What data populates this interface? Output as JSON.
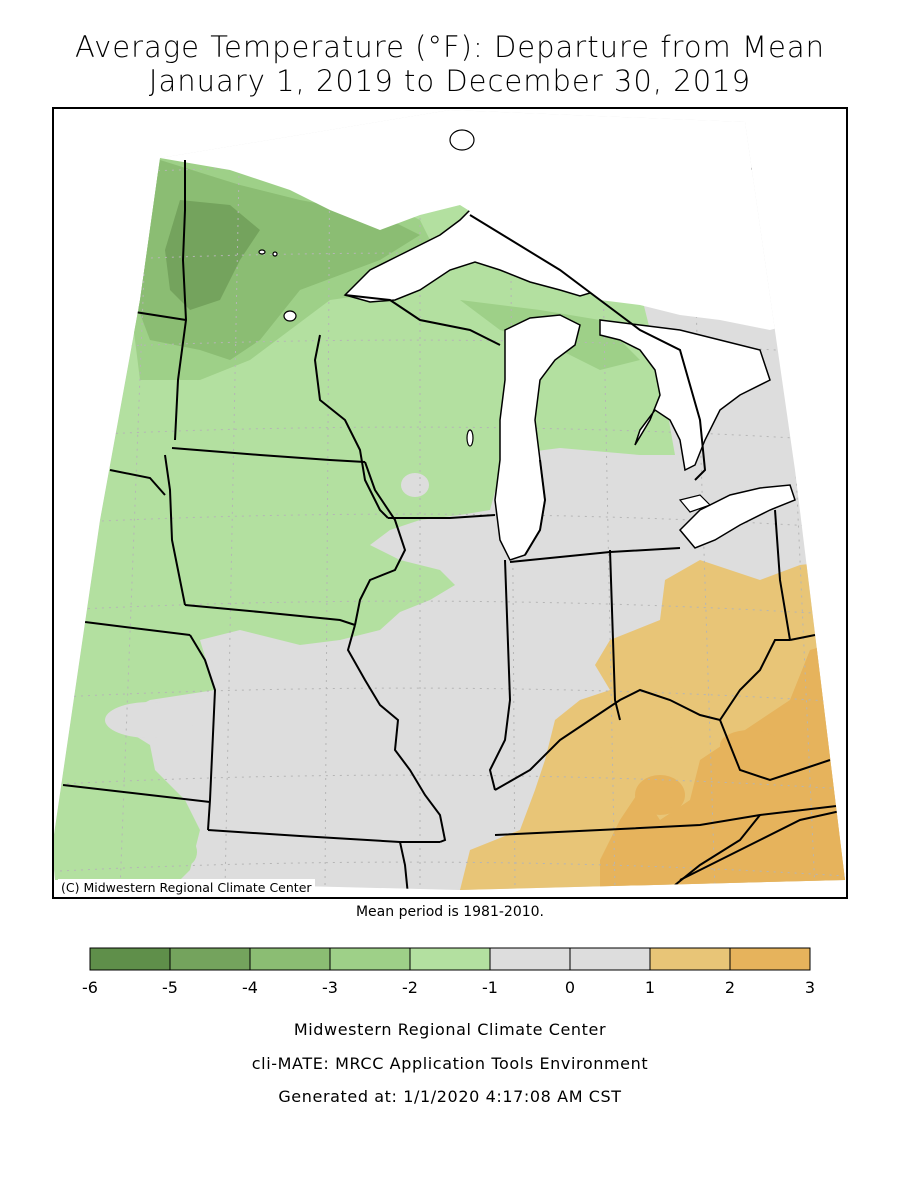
{
  "title_line1": "Average Temperature (°F): Departure from Mean",
  "title_line2": "January 1, 2019 to December 30, 2019",
  "map_credit": "(C) Midwestern Regional Climate Center",
  "mean_period_note": "Mean period is 1981-2010.",
  "legend": {
    "bins": [
      {
        "from": -6,
        "to": -5,
        "color": "#5f8f4a"
      },
      {
        "from": -5,
        "to": -4,
        "color": "#74a35d"
      },
      {
        "from": -4,
        "to": -3,
        "color": "#8bbd73"
      },
      {
        "from": -3,
        "to": -2,
        "color": "#9ed088"
      },
      {
        "from": -2,
        "to": -1,
        "color": "#b3e0a0"
      },
      {
        "from": -1,
        "to": 0,
        "color": "#dddddd"
      },
      {
        "from": 0,
        "to": 1,
        "color": "#dddddd"
      },
      {
        "from": 1,
        "to": 2,
        "color": "#e8c577"
      },
      {
        "from": 2,
        "to": 3,
        "color": "#e6b35c"
      }
    ],
    "tick_labels": [
      "-6",
      "-5",
      "-4",
      "-3",
      "-2",
      "-1",
      "0",
      "1",
      "2",
      "3"
    ]
  },
  "footer": {
    "line1": "Midwestern Regional Climate Center",
    "line2": "cli-MATE: MRCC Application Tools Environment",
    "line3": "Generated at: 1/1/2020 4:17:08 AM CST"
  },
  "colors": {
    "lake": "#ffffff",
    "border": "#000000",
    "grid": "#b5b5b5"
  }
}
